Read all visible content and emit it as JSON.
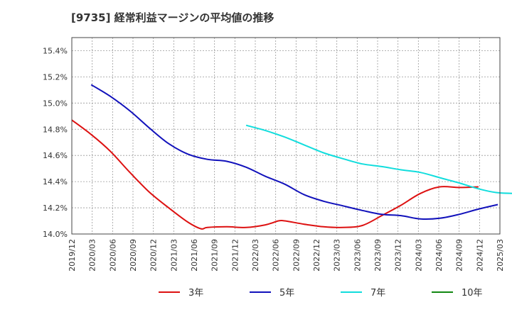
{
  "chart_data": {
    "type": "line",
    "title": "[9735]  経常利益マージンの平均値の推移",
    "xlabel": "",
    "ylabel": "",
    "ylim": [
      14.0,
      15.5
    ],
    "yticks": [
      "14.0%",
      "14.2%",
      "14.4%",
      "14.6%",
      "14.8%",
      "15.0%",
      "15.2%",
      "15.4%"
    ],
    "ytick_values": [
      14.0,
      14.2,
      14.4,
      14.6,
      14.8,
      15.0,
      15.2,
      15.4
    ],
    "xticks": [
      "2019/12",
      "2020/03",
      "2020/06",
      "2020/09",
      "2020/12",
      "2021/03",
      "2021/06",
      "2021/09",
      "2021/12",
      "2022/03",
      "2022/06",
      "2022/09",
      "2022/12",
      "2023/03",
      "2023/06",
      "2023/09",
      "2023/12",
      "2024/03",
      "2024/06",
      "2024/09",
      "2024/12",
      "2025/03"
    ],
    "grid": true,
    "legend_position": "bottom",
    "series": [
      {
        "name": "3年",
        "color": "#dd1111",
        "points": [
          [
            "2019/12",
            14.87
          ],
          [
            "2020/03",
            14.76
          ],
          [
            "2020/06",
            14.63
          ],
          [
            "2020/09",
            14.47
          ],
          [
            "2020/12",
            14.32
          ],
          [
            "2021/03",
            14.2
          ],
          [
            "2021/06",
            14.09
          ],
          [
            "2021/08",
            14.04
          ],
          [
            "2021/09",
            14.05
          ],
          [
            "2021/12",
            14.055
          ],
          [
            "2022/03",
            14.05
          ],
          [
            "2022/06",
            14.07
          ],
          [
            "2022/08",
            14.1
          ],
          [
            "2022/09",
            14.1
          ],
          [
            "2022/12",
            14.075
          ],
          [
            "2023/03",
            14.055
          ],
          [
            "2023/06",
            14.05
          ],
          [
            "2023/09",
            14.065
          ],
          [
            "2023/12",
            14.14
          ],
          [
            "2024/03",
            14.22
          ],
          [
            "2024/06",
            14.31
          ],
          [
            "2024/09",
            14.36
          ],
          [
            "2024/12",
            14.355
          ],
          [
            "2025/03",
            14.36
          ]
        ]
      },
      {
        "name": "5年",
        "color": "#1111bb",
        "points": [
          [
            "2020/03",
            15.14
          ],
          [
            "2020/06",
            15.05
          ],
          [
            "2020/09",
            14.94
          ],
          [
            "2020/12",
            14.81
          ],
          [
            "2021/03",
            14.69
          ],
          [
            "2021/06",
            14.61
          ],
          [
            "2021/09",
            14.57
          ],
          [
            "2021/12",
            14.555
          ],
          [
            "2022/03",
            14.51
          ],
          [
            "2022/06",
            14.44
          ],
          [
            "2022/09",
            14.38
          ],
          [
            "2022/12",
            14.3
          ],
          [
            "2023/03",
            14.25
          ],
          [
            "2023/06",
            14.215
          ],
          [
            "2023/09",
            14.18
          ],
          [
            "2023/12",
            14.15
          ],
          [
            "2024/03",
            14.14
          ],
          [
            "2024/06",
            14.115
          ],
          [
            "2024/09",
            14.12
          ],
          [
            "2024/12",
            14.15
          ],
          [
            "2025/03",
            14.19
          ],
          [
            "2025/06",
            14.225
          ]
        ]
      },
      {
        "name": "7年",
        "color": "#11dddd",
        "points": [
          [
            "2022/03",
            14.83
          ],
          [
            "2022/06",
            14.79
          ],
          [
            "2022/09",
            14.74
          ],
          [
            "2022/12",
            14.68
          ],
          [
            "2023/03",
            14.62
          ],
          [
            "2023/06",
            14.575
          ],
          [
            "2023/09",
            14.535
          ],
          [
            "2023/12",
            14.515
          ],
          [
            "2024/03",
            14.49
          ],
          [
            "2024/06",
            14.47
          ],
          [
            "2024/09",
            14.43
          ],
          [
            "2024/12",
            14.39
          ],
          [
            "2025/03",
            14.345
          ],
          [
            "2025/06",
            14.315
          ],
          [
            "2025/09",
            14.31
          ]
        ]
      },
      {
        "name": "10年",
        "color": "#118811",
        "points": []
      }
    ]
  }
}
